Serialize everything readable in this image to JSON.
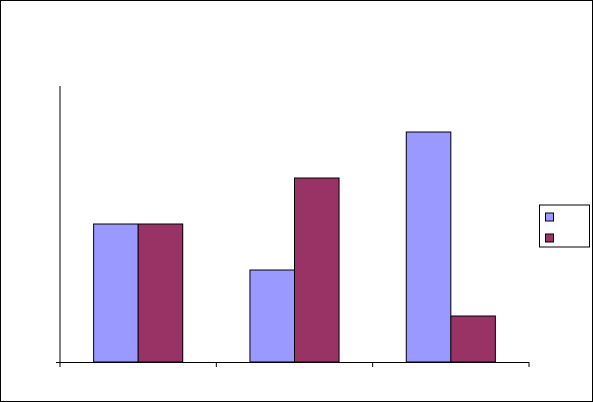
{
  "chart_data": {
    "type": "bar",
    "categories": [
      null,
      null,
      null
    ],
    "series": [
      {
        "color": "#9999ff",
        "values": [
          3,
          2,
          5
        ]
      },
      {
        "color": "#993366",
        "values": [
          3,
          4,
          1
        ]
      }
    ],
    "ylim": [
      0,
      6
    ]
  }
}
